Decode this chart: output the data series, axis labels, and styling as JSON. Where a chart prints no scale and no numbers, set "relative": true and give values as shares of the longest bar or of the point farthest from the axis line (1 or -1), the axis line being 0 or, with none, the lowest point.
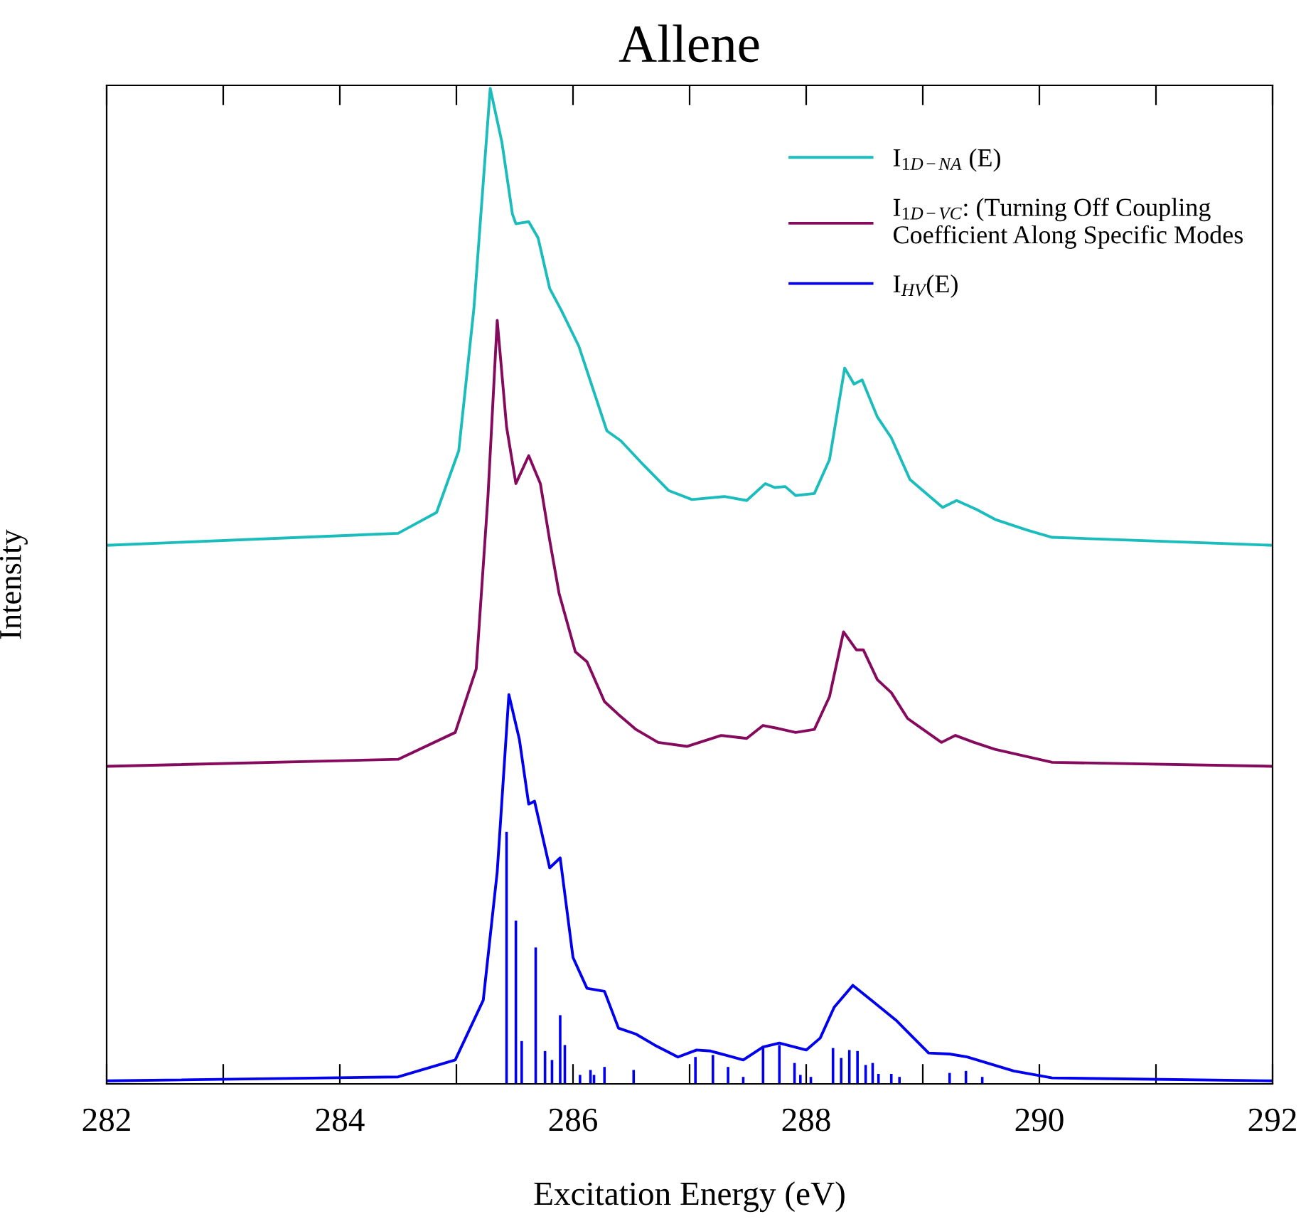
{
  "chart_data": {
    "type": "line",
    "title": "Allene",
    "xlabel": "Excitation Energy (eV)",
    "ylabel": "Intensity",
    "relative": true,
    "xlim": [
      282,
      292
    ],
    "xticks": [
      282,
      {
        "value": 283,
        "label": null
      },
      284,
      {
        "value": 285,
        "label": null
      },
      286,
      {
        "value": 287,
        "label": null
      },
      288,
      {
        "value": 289,
        "label": null
      },
      290,
      {
        "value": 291,
        "label": null
      },
      292
    ],
    "tick_labels": "x",
    "grid": false,
    "legend": "top right",
    "marker": "none",
    "line_style": "solid",
    "series": [
      {
        "name": "I$_{1D−NA}$ (E)",
        "color": "#1bbcbc",
        "x": [
          282,
          284.5,
          284.83,
          285.02,
          285.15,
          285.29,
          285.39,
          285.48,
          285.51,
          285.62,
          285.7,
          285.8,
          285.9,
          286.05,
          286.29,
          286.41,
          286.61,
          286.82,
          287.02,
          287.3,
          287.49,
          287.65,
          287.73,
          287.82,
          287.91,
          288.07,
          288.2,
          288.33,
          288.41,
          288.48,
          288.61,
          288.73,
          288.89,
          289.17,
          289.29,
          289.46,
          289.62,
          289.9,
          290.11,
          292
        ],
        "values": [
          0.541,
          0.553,
          0.574,
          0.636,
          0.779,
          1.0,
          0.946,
          0.874,
          0.864,
          0.866,
          0.85,
          0.799,
          0.777,
          0.741,
          0.656,
          0.646,
          0.621,
          0.596,
          0.587,
          0.59,
          0.586,
          0.603,
          0.599,
          0.6,
          0.591,
          0.593,
          0.627,
          0.719,
          0.703,
          0.707,
          0.67,
          0.649,
          0.607,
          0.579,
          0.586,
          0.577,
          0.567,
          0.556,
          0.549,
          0.541
        ]
      },
      {
        "name": "I$_{1D−VC}$: (Turning Off Coupling\nCoefficient Along Specific Modes",
        "color": "#850a5e",
        "x": [
          282,
          284.5,
          284.99,
          285.17,
          285.27,
          285.35,
          285.43,
          285.51,
          285.62,
          285.72,
          285.8,
          285.88,
          286.02,
          286.12,
          286.27,
          286.39,
          286.54,
          286.73,
          286.98,
          287.27,
          287.49,
          287.63,
          287.76,
          287.91,
          288.07,
          288.2,
          288.32,
          288.43,
          288.49,
          288.61,
          288.73,
          288.87,
          289.16,
          289.28,
          289.44,
          289.62,
          290.11,
          292
        ],
        "values": [
          0.319,
          0.326,
          0.353,
          0.417,
          0.589,
          0.767,
          0.66,
          0.603,
          0.631,
          0.603,
          0.546,
          0.493,
          0.434,
          0.424,
          0.384,
          0.371,
          0.356,
          0.343,
          0.339,
          0.35,
          0.347,
          0.36,
          0.357,
          0.353,
          0.356,
          0.389,
          0.454,
          0.436,
          0.436,
          0.406,
          0.393,
          0.367,
          0.343,
          0.35,
          0.343,
          0.336,
          0.323,
          0.319
        ]
      },
      {
        "name": "I$_{HV}$(E)",
        "color": "#0000ee",
        "x": [
          282,
          284.5,
          284.99,
          285.23,
          285.35,
          285.45,
          285.54,
          285.62,
          285.67,
          285.8,
          285.89,
          286.0,
          286.12,
          286.27,
          286.39,
          286.54,
          286.7,
          286.9,
          287.06,
          287.18,
          287.46,
          287.63,
          287.77,
          288.0,
          288.12,
          288.24,
          288.4,
          288.56,
          288.77,
          289.05,
          289.23,
          289.38,
          289.78,
          290.11,
          292
        ],
        "values": [
          0.003,
          0.007,
          0.024,
          0.084,
          0.213,
          0.391,
          0.346,
          0.281,
          0.284,
          0.217,
          0.227,
          0.127,
          0.096,
          0.093,
          0.056,
          0.05,
          0.039,
          0.027,
          0.034,
          0.033,
          0.024,
          0.037,
          0.041,
          0.034,
          0.046,
          0.077,
          0.099,
          0.084,
          0.064,
          0.031,
          0.03,
          0.027,
          0.013,
          0.006,
          0.003
        ]
      },
      {
        "type": "bar",
        "color": "#0000ee",
        "x": [
          285.43,
          285.51,
          285.56,
          285.68,
          285.76,
          285.82,
          285.89,
          285.93,
          286.06,
          286.15,
          286.18,
          286.27,
          286.52,
          287.05,
          287.2,
          287.33,
          287.46,
          287.63,
          287.77,
          287.9,
          287.95,
          288.04,
          288.23,
          288.3,
          288.37,
          288.44,
          288.51,
          288.57,
          288.62,
          288.73,
          288.8,
          289.23,
          289.37,
          289.51
        ],
        "values": [
          0.253,
          0.164,
          0.043,
          0.137,
          0.033,
          0.024,
          0.069,
          0.039,
          0.009,
          0.014,
          0.009,
          0.017,
          0.014,
          0.027,
          0.029,
          0.017,
          0.007,
          0.037,
          0.039,
          0.021,
          0.009,
          0.007,
          0.036,
          0.026,
          0.034,
          0.033,
          0.019,
          0.021,
          0.01,
          0.01,
          0.007,
          0.011,
          0.013,
          0.007
        ]
      }
    ]
  }
}
